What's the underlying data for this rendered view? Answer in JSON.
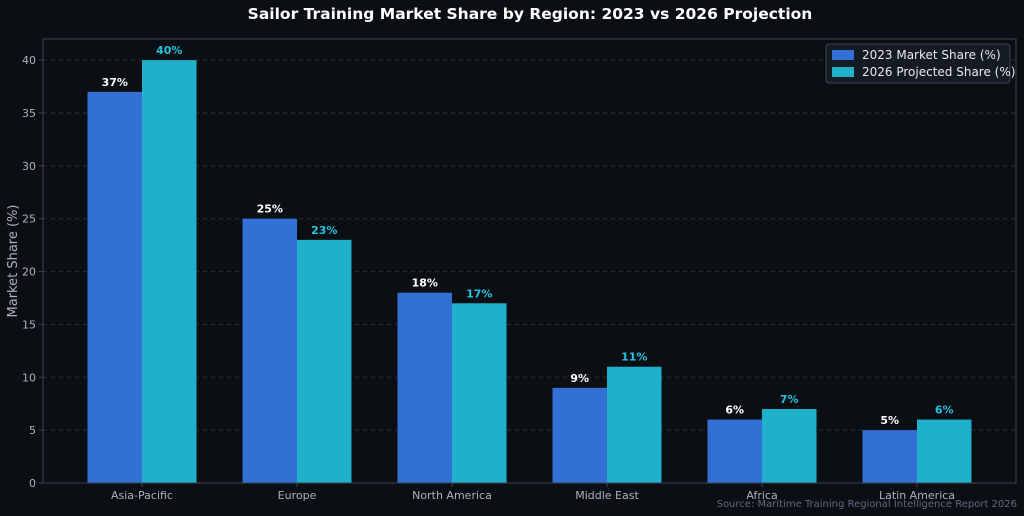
{
  "chart_data": {
    "type": "bar",
    "title": "Sailor Training Market Share by Region: 2023 vs 2026 Projection",
    "xlabel": "",
    "ylabel": "Market Share (%)",
    "ylim": [
      0,
      42
    ],
    "yticks": [
      0,
      5,
      10,
      15,
      20,
      25,
      30,
      35,
      40
    ],
    "grid": true,
    "legend_position": "top-right",
    "categories": [
      "Asia-Pacific",
      "Europe",
      "North America",
      "Middle East",
      "Africa",
      "Latin America"
    ],
    "series": [
      {
        "name": "2023 Market Share (%)",
        "values": [
          37,
          25,
          18,
          9,
          6,
          5
        ],
        "color": "#3370d6",
        "label_color": "#ffffff"
      },
      {
        "name": "2026 Projected Share (%)",
        "values": [
          40,
          23,
          17,
          11,
          7,
          6
        ],
        "color": "#1fb1cc",
        "label_color": "#22c3e0"
      }
    ],
    "data_label_suffix": "%",
    "source": "Source: Maritime Training Regional Intelligence Report 2026"
  },
  "colors": {
    "background": "#0b0e13",
    "grid": "#2a313c",
    "axis": "#3d4656",
    "legend_bg": "#151b25"
  }
}
